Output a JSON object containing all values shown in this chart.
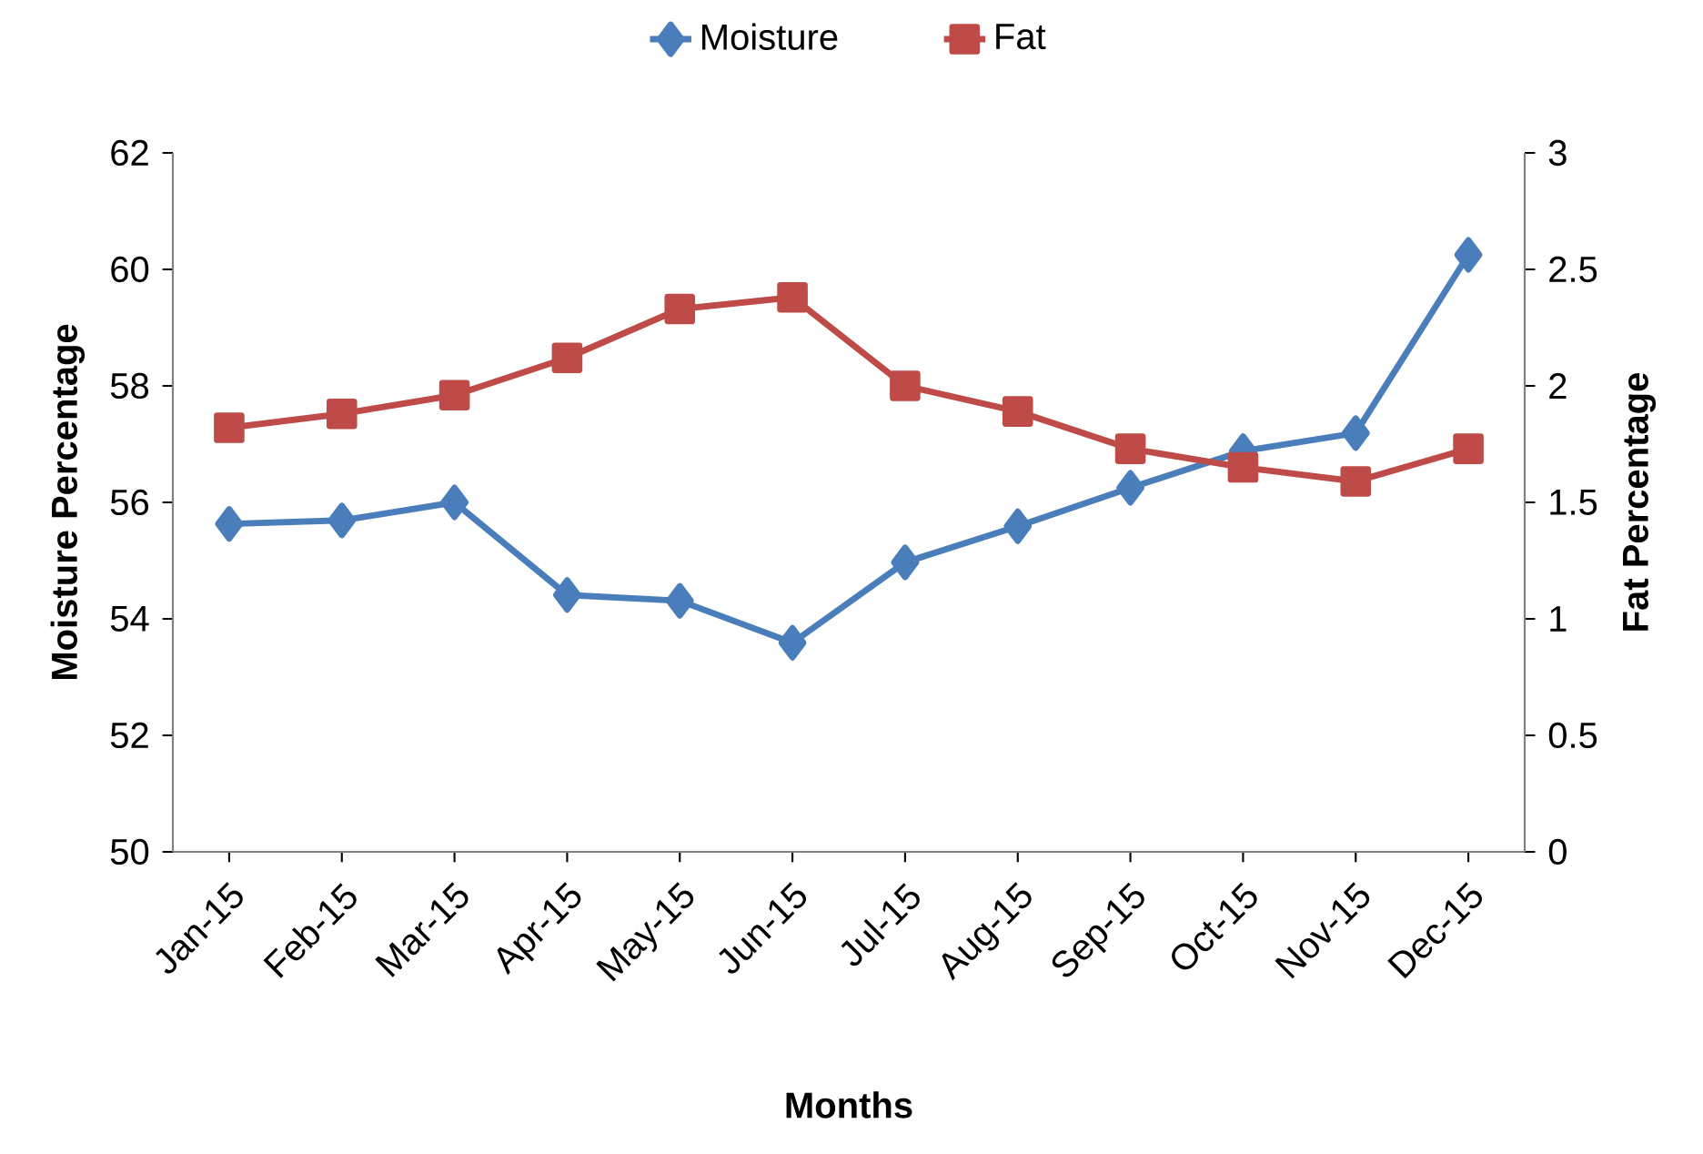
{
  "chart_data": {
    "type": "line",
    "xlabel": "Months",
    "ylabel": "Moisture Percentage",
    "y2label": "Fat Percentage",
    "categories": [
      "Jan-15",
      "Feb-15",
      "Mar-15",
      "Apr-15",
      "May-15",
      "Jun-15",
      "Jul-15",
      "Aug-15",
      "Sep-15",
      "Oct-15",
      "Nov-15",
      "Dec-15"
    ],
    "series": [
      {
        "name": "Moisture",
        "color": "#4a7ebb",
        "marker": "diamond",
        "values": [
          55.63,
          55.69,
          56.0,
          54.41,
          54.31,
          53.59,
          54.97,
          55.59,
          56.25,
          56.88,
          57.19,
          60.25
        ]
      },
      {
        "name": "Fat",
        "color": "#be4b48",
        "marker": "square",
        "axis": "y2",
        "values": [
          1.82,
          1.88,
          1.96,
          2.12,
          2.33,
          2.38,
          2.0,
          1.89,
          1.73,
          1.65,
          1.59,
          1.73
        ]
      }
    ],
    "ylim": [
      50,
      62
    ],
    "yticks": [
      50,
      52,
      54,
      56,
      58,
      60,
      62
    ],
    "y2lim": [
      0,
      3
    ],
    "y2ticks": [
      0,
      0.5,
      1,
      1.5,
      2,
      2.5,
      3
    ],
    "legend": "top",
    "grid": false
  }
}
